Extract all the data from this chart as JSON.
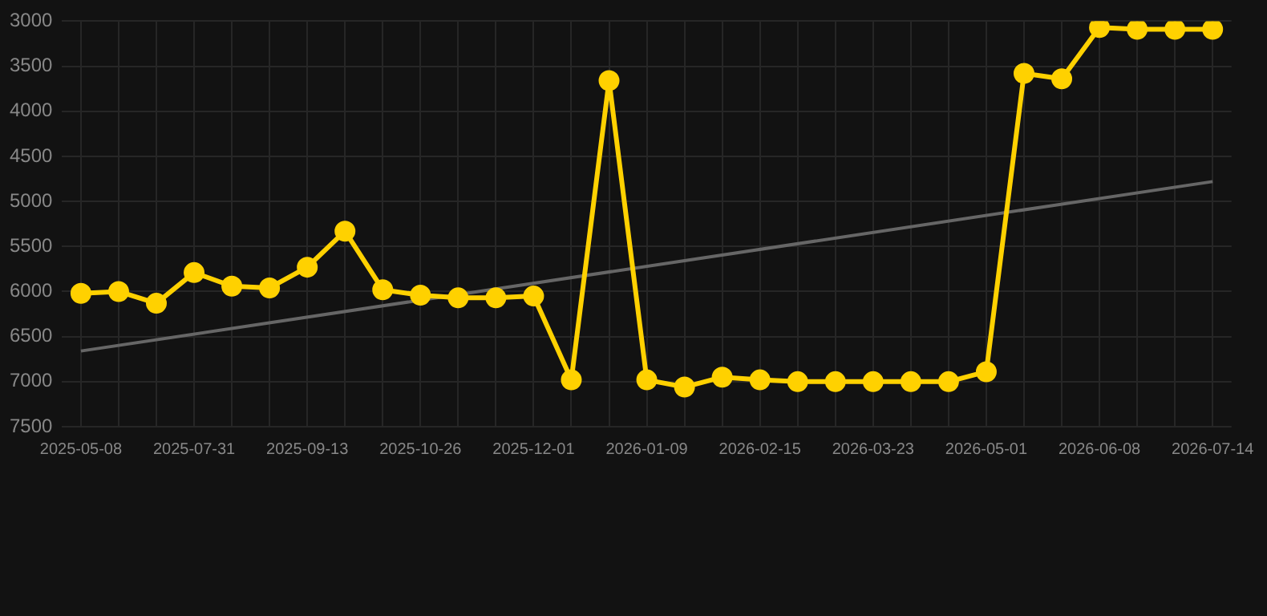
{
  "chart_data": {
    "type": "line",
    "categories": [
      "2025-05-08",
      null,
      null,
      "2025-07-31",
      null,
      null,
      "2025-09-13",
      null,
      null,
      "2025-10-26",
      null,
      null,
      "2025-12-01",
      null,
      null,
      "2026-01-09",
      null,
      null,
      "2026-02-15",
      null,
      null,
      "2026-03-23",
      null,
      null,
      "2026-05-01",
      null,
      null,
      "2026-06-08",
      null,
      null,
      "2026-07-14"
    ],
    "series": [
      {
        "color": "#ffd100",
        "values": [
          6020,
          6000,
          6130,
          5790,
          5940,
          5960,
          5730,
          5330,
          5980,
          6040,
          6070,
          6070,
          6050,
          6980,
          3660,
          6980,
          7060,
          6950,
          6980,
          7000,
          7000,
          7000,
          7000,
          7000,
          6890,
          3580,
          3640,
          3070,
          3090,
          3090,
          3090
        ],
        "marker": "circle"
      },
      {
        "type": "line",
        "color": "#666666",
        "marker": "none",
        "values": [
          6660,
          null,
          null,
          null,
          null,
          null,
          null,
          null,
          null,
          null,
          null,
          null,
          null,
          null,
          null,
          null,
          null,
          null,
          null,
          null,
          null,
          null,
          null,
          null,
          null,
          null,
          null,
          null,
          null,
          null,
          4780
        ]
      }
    ],
    "ylim": [
      7500,
      3000
    ],
    "yticks": [
      3000,
      3500,
      4000,
      4500,
      5000,
      5500,
      6000,
      6500,
      7000,
      7500
    ],
    "grid": true,
    "legend": false
  }
}
